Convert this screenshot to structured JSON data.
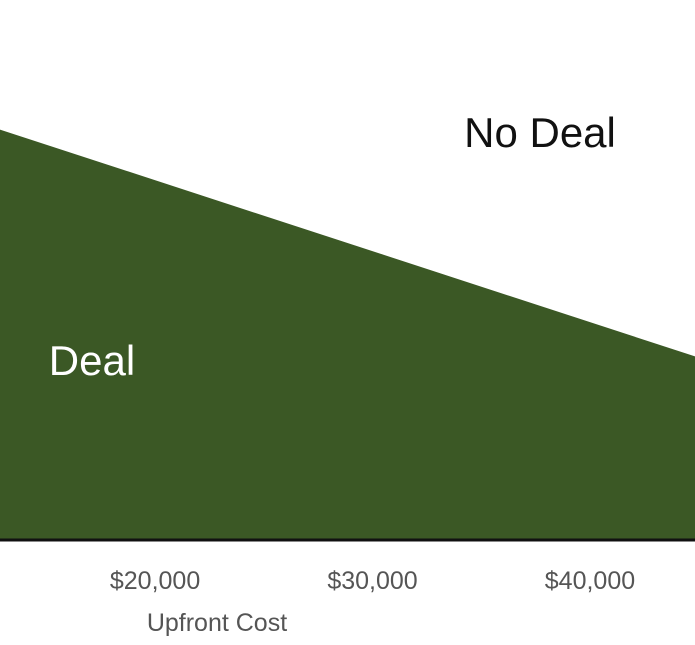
{
  "chart_data": {
    "type": "area",
    "xlabel": "Upfront Cost",
    "ylabel": "",
    "xlim": [
      12870,
      44830
    ],
    "ylim": [
      0,
      1
    ],
    "xticks": [
      20000,
      30000,
      40000
    ],
    "xtick_labels": [
      "$20,000",
      "$30,000",
      "$40,000"
    ],
    "series": [
      {
        "x": [
          12870,
          44830
        ],
        "y": [
          0.76,
          0.34
        ]
      }
    ],
    "regions": {
      "below": "Deal",
      "above": "No Deal"
    },
    "grid": false,
    "colors": {
      "fill": "#3b5825",
      "axis": "#111111",
      "tick_text": "#555555",
      "deal_text": "#ffffff",
      "no_deal_text": "#111111"
    }
  }
}
